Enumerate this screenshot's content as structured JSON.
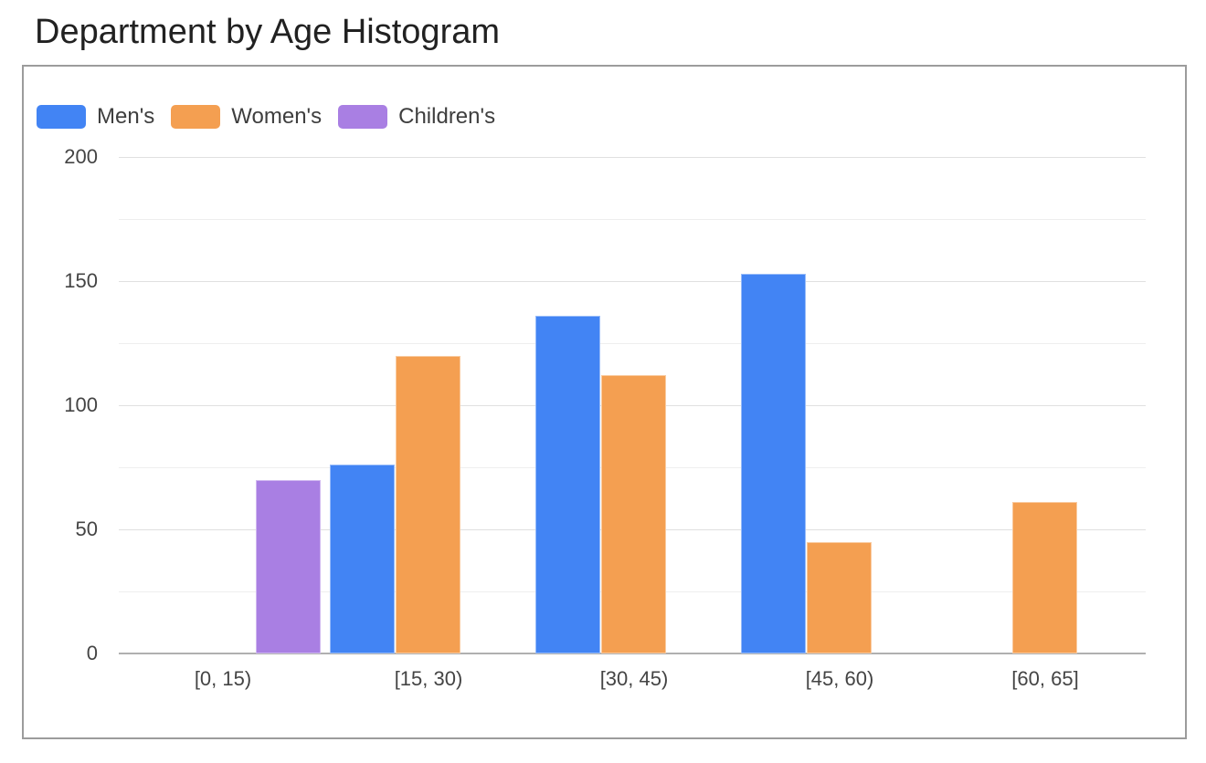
{
  "chart_data": {
    "type": "bar",
    "title": "Department by Age Histogram",
    "categories": [
      "[0, 15)",
      "[15, 30)",
      "[30, 45)",
      "[45, 60)",
      "[60, 65]"
    ],
    "series": [
      {
        "name": "Men's",
        "color": "#4284F4",
        "values": [
          null,
          76,
          136,
          153,
          null
        ]
      },
      {
        "name": "Women's",
        "color": "#F49F51",
        "values": [
          null,
          120,
          112,
          45,
          61
        ]
      },
      {
        "name": "Children's",
        "color": "#A97FE3",
        "values": [
          70,
          null,
          null,
          null,
          null
        ]
      }
    ],
    "xlabel": "",
    "ylabel": "",
    "ylim": [
      0,
      200
    ],
    "yticks": [
      0,
      50,
      100,
      150,
      200
    ],
    "grid_step": 25,
    "grid": "on",
    "legend_position": "top-left",
    "colors": {
      "title_text": "#212121",
      "tick_text": "#444444",
      "legend_text": "#3e3e3e",
      "frame_border": "#9c9c9c",
      "gridline_major": "#e0e0e0",
      "gridline_minor": "#eeeeee",
      "baseline": "#b0b0b0"
    }
  }
}
